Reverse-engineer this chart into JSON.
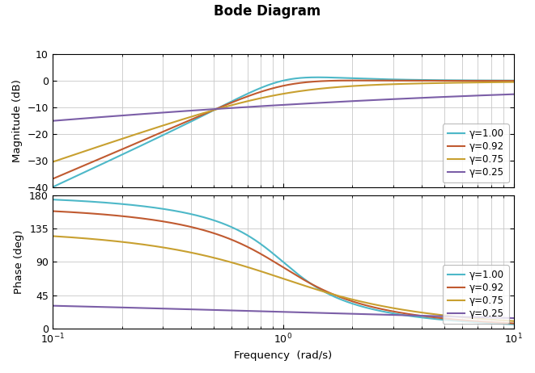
{
  "title": "Bode Diagram",
  "xlabel": "Frequency  (rad/s)",
  "ylabel_mag": "Magnitude (dB)",
  "ylabel_phase": "Phase (deg)",
  "gammas": [
    1.0,
    0.92,
    0.75,
    0.25
  ],
  "colors": [
    "#4db8c8",
    "#c05a30",
    "#c8a030",
    "#7b5ea7"
  ],
  "freq_range": [
    -1,
    1
  ],
  "mag_ylim": [
    -40,
    10
  ],
  "mag_yticks": [
    -40,
    -30,
    -20,
    -10,
    0,
    10
  ],
  "phase_ylim": [
    0,
    180
  ],
  "phase_yticks": [
    0,
    45,
    90,
    135,
    180
  ],
  "legend_labels": [
    "γ=1.00",
    "γ=0.92",
    "γ=0.75",
    "γ=0.25"
  ],
  "linewidth": 1.5,
  "background_color": "#ffffff",
  "grid_color": "#c8c8c8"
}
